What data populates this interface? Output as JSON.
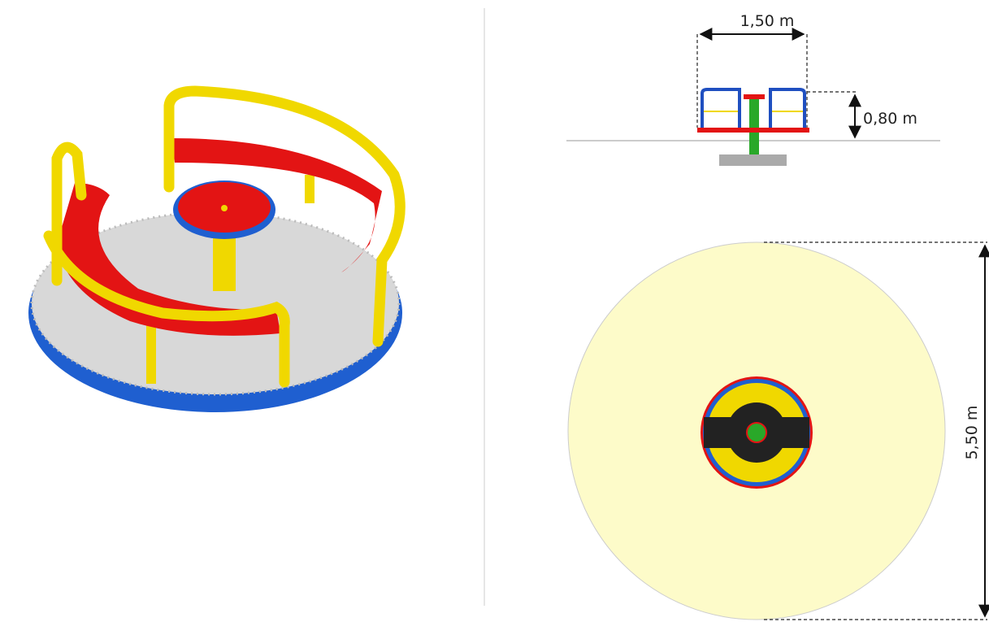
{
  "dimensions": {
    "width": "1,50 m",
    "height": "0,80 m",
    "diameter": "5,50 m"
  }
}
